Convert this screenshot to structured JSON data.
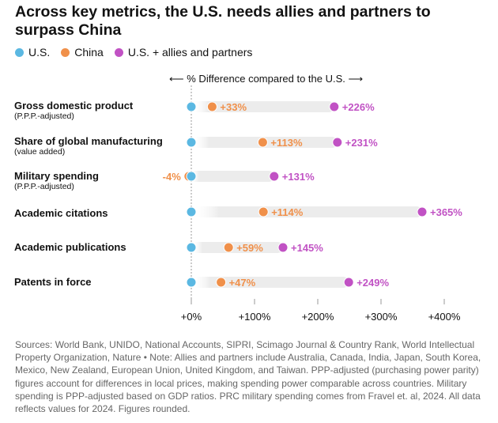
{
  "title": "Across key metrics, the U.S. needs allies and partners to surpass China",
  "legend": [
    {
      "label": "U.S.",
      "color": "#5BB8E2"
    },
    {
      "label": "China",
      "color": "#F0904A"
    },
    {
      "label": "U.S. + allies and partners",
      "color": "#C152C4"
    }
  ],
  "axis_caption": "% Difference compared to the U.S.",
  "chart_data": {
    "type": "dot",
    "title": "Across key metrics, the U.S. needs allies and partners to surpass China",
    "xlabel": "% Difference compared to the U.S.",
    "xlim": [
      0,
      400
    ],
    "ticks": [
      0,
      100,
      200,
      300,
      400
    ],
    "tick_labels": [
      "+0%",
      "+100%",
      "+200%",
      "+300%",
      "+400%"
    ],
    "series": [
      {
        "name": "U.S.",
        "color": "#5BB8E2"
      },
      {
        "name": "China",
        "color": "#F0904A"
      },
      {
        "name": "U.S. + allies and partners",
        "color": "#C152C4"
      }
    ],
    "rows": [
      {
        "label": "Gross domestic product",
        "sublabel": "(P.P.P.-adjusted)",
        "us": 0,
        "china": 33,
        "allies": 226,
        "china_label": "+33%",
        "allies_label": "+226%"
      },
      {
        "label": "Share of global manufacturing",
        "sublabel": "(value added)",
        "us": 0,
        "china": 113,
        "allies": 231,
        "china_label": "+113%",
        "allies_label": "+231%"
      },
      {
        "label": "Military spending",
        "sublabel": "(P.P.P.-adjusted)",
        "us": 0,
        "china": -4,
        "allies": 131,
        "china_label": "-4%",
        "allies_label": "+131%"
      },
      {
        "label": "Academic citations",
        "sublabel": "",
        "us": 0,
        "china": 114,
        "allies": 365,
        "china_label": "+114%",
        "allies_label": "+365%"
      },
      {
        "label": "Academic publications",
        "sublabel": "",
        "us": 0,
        "china": 59,
        "allies": 145,
        "china_label": "+59%",
        "allies_label": "+145%"
      },
      {
        "label": "Patents in force",
        "sublabel": "",
        "us": 0,
        "china": 47,
        "allies": 249,
        "china_label": "+47%",
        "allies_label": "+249%"
      }
    ]
  },
  "source_note": "Sources: World Bank, UNIDO, National Accounts, SIPRI, Scimago Journal & Country Rank, World Intellectual Property Organization, Nature • Note: Allies and partners include Australia, Canada, India, Japan, South Korea, Mexico, New Zealand, European Union, United Kingdom, and Taiwan. PPP-adjusted (purchasing power parity) figures account for differences in local prices, making spending power comparable across countries. Military spending is PPP-adjusted based on GDP ratios. PRC military spending comes from Fravel et. al, 2024. All data reflects values for 2024. Figures rounded."
}
